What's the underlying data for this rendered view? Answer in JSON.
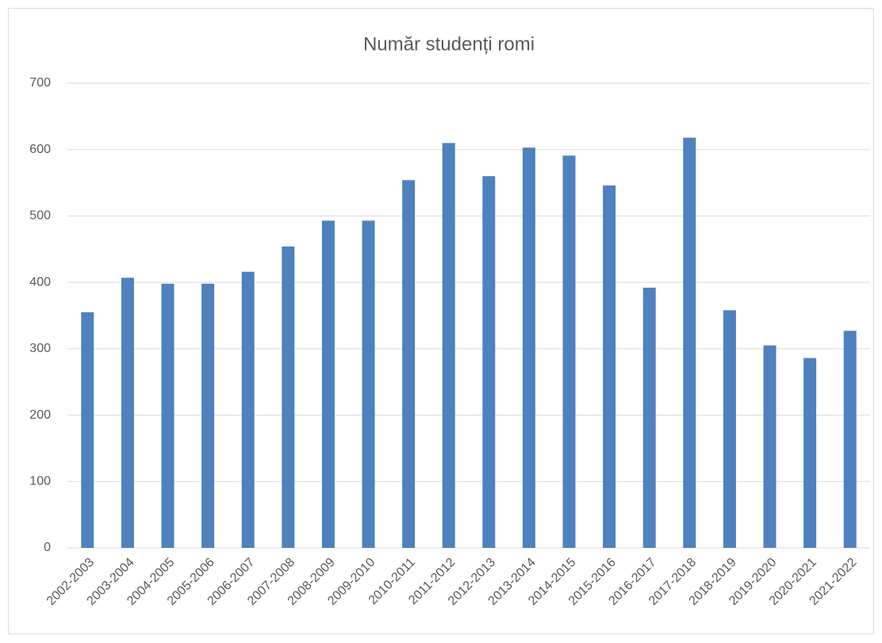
{
  "chart_data": {
    "type": "bar",
    "title": "Număr studenți romi",
    "categories": [
      "2002-2003",
      "2003-2004",
      "2004-2005",
      "2005-2006",
      "2006-2007",
      "2007-2008",
      "2008-2009",
      "2009-2010",
      "2010-2011",
      "2011-2012",
      "2012-2013",
      "2013-2014",
      "2014-2015",
      "2015-2016",
      "2016-2017",
      "2017-2018",
      "2018-2019",
      "2019-2020",
      "2020-2021",
      "2021-2022"
    ],
    "values": [
      355,
      407,
      398,
      398,
      416,
      454,
      493,
      493,
      554,
      610,
      560,
      603,
      591,
      546,
      392,
      618,
      358,
      305,
      286,
      327
    ],
    "color": "#4e81bd",
    "ylim": [
      0,
      700
    ],
    "yticks": [
      0,
      100,
      200,
      300,
      400,
      500,
      600,
      700
    ],
    "grid": true
  }
}
